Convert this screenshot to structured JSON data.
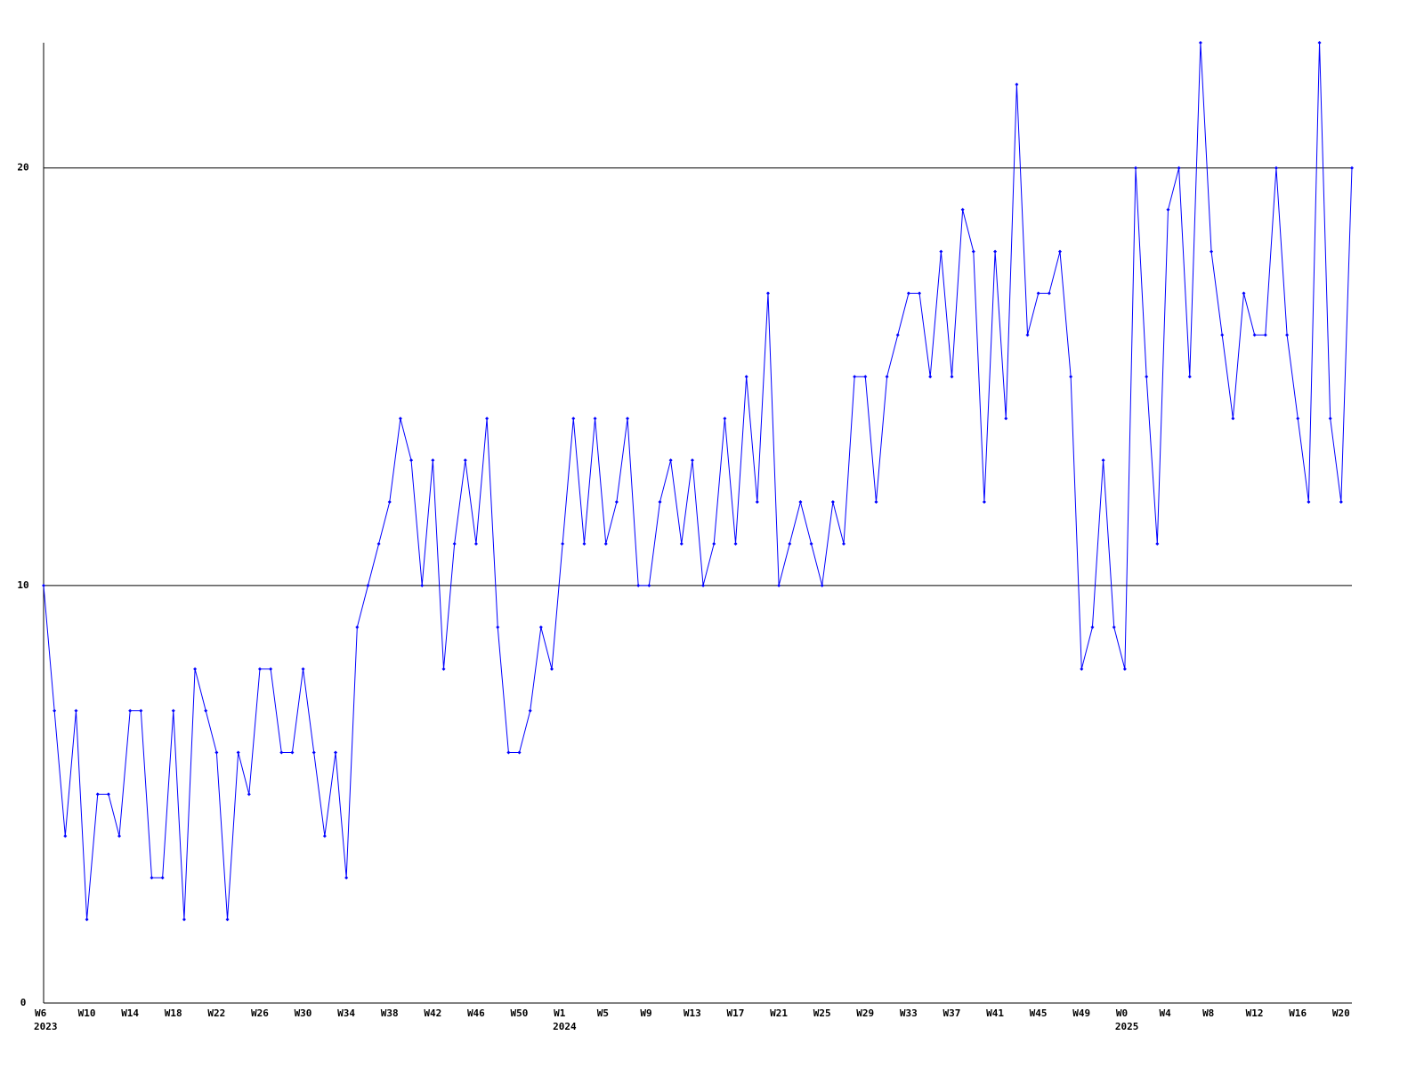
{
  "chart_data": {
    "type": "line",
    "ylim": [
      0,
      23
    ],
    "yticks": [
      0,
      10,
      20
    ],
    "grid": true,
    "xlim": [
      0,
      121
    ],
    "xticks": [
      {
        "value": 0,
        "label": "W6"
      },
      {
        "value": 4,
        "label": "W10"
      },
      {
        "value": 8,
        "label": "W14"
      },
      {
        "value": 12,
        "label": "W18"
      },
      {
        "value": 16,
        "label": "W22"
      },
      {
        "value": 20,
        "label": "W26"
      },
      {
        "value": 24,
        "label": "W30"
      },
      {
        "value": 28,
        "label": "W34"
      },
      {
        "value": 32,
        "label": "W38"
      },
      {
        "value": 36,
        "label": "W42"
      },
      {
        "value": 40,
        "label": "W46"
      },
      {
        "value": 44,
        "label": "W50"
      },
      {
        "value": 48,
        "label": "W1"
      },
      {
        "value": 52,
        "label": "W5"
      },
      {
        "value": 56,
        "label": "W9"
      },
      {
        "value": 60,
        "label": "W13"
      },
      {
        "value": 64,
        "label": "W17"
      },
      {
        "value": 68,
        "label": "W21"
      },
      {
        "value": 72,
        "label": "W25"
      },
      {
        "value": 76,
        "label": "W29"
      },
      {
        "value": 80,
        "label": "W33"
      },
      {
        "value": 84,
        "label": "W37"
      },
      {
        "value": 88,
        "label": "W41"
      },
      {
        "value": 92,
        "label": "W45"
      },
      {
        "value": 96,
        "label": "W49"
      },
      {
        "value": 100,
        "label": "W0"
      },
      {
        "value": 104,
        "label": "W4"
      },
      {
        "value": 108,
        "label": "W8"
      },
      {
        "value": 112,
        "label": "W12"
      },
      {
        "value": 116,
        "label": "W16"
      },
      {
        "value": 120,
        "label": "W20"
      }
    ],
    "year_labels": [
      {
        "value": 0,
        "label": "2023"
      },
      {
        "value": 48,
        "label": "2024"
      },
      {
        "value": 100,
        "label": "2025"
      }
    ],
    "color": "#0000ff",
    "values": [
      10,
      7,
      4,
      7,
      2,
      5,
      5,
      4,
      7,
      7,
      3,
      3,
      7,
      2,
      8,
      7,
      6,
      2,
      6,
      5,
      8,
      8,
      6,
      6,
      8,
      6,
      4,
      6,
      3,
      9,
      10,
      11,
      12,
      14,
      13,
      10,
      13,
      8,
      11,
      13,
      11,
      14,
      9,
      6,
      6,
      7,
      9,
      8,
      11,
      14,
      11,
      14,
      11,
      12,
      14,
      10,
      10,
      12,
      13,
      11,
      13,
      10,
      11,
      14,
      11,
      15,
      12,
      17,
      10,
      11,
      12,
      11,
      10,
      12,
      11,
      15,
      15,
      12,
      15,
      16,
      17,
      17,
      15,
      18,
      15,
      19,
      18,
      12,
      18,
      14,
      22,
      16,
      17,
      17,
      18,
      15,
      8,
      9,
      13,
      9,
      8,
      20,
      15,
      11,
      19,
      20,
      15,
      23,
      18,
      16,
      14,
      17,
      16,
      16,
      20,
      16,
      14,
      12,
      23,
      14,
      12,
      20
    ]
  }
}
